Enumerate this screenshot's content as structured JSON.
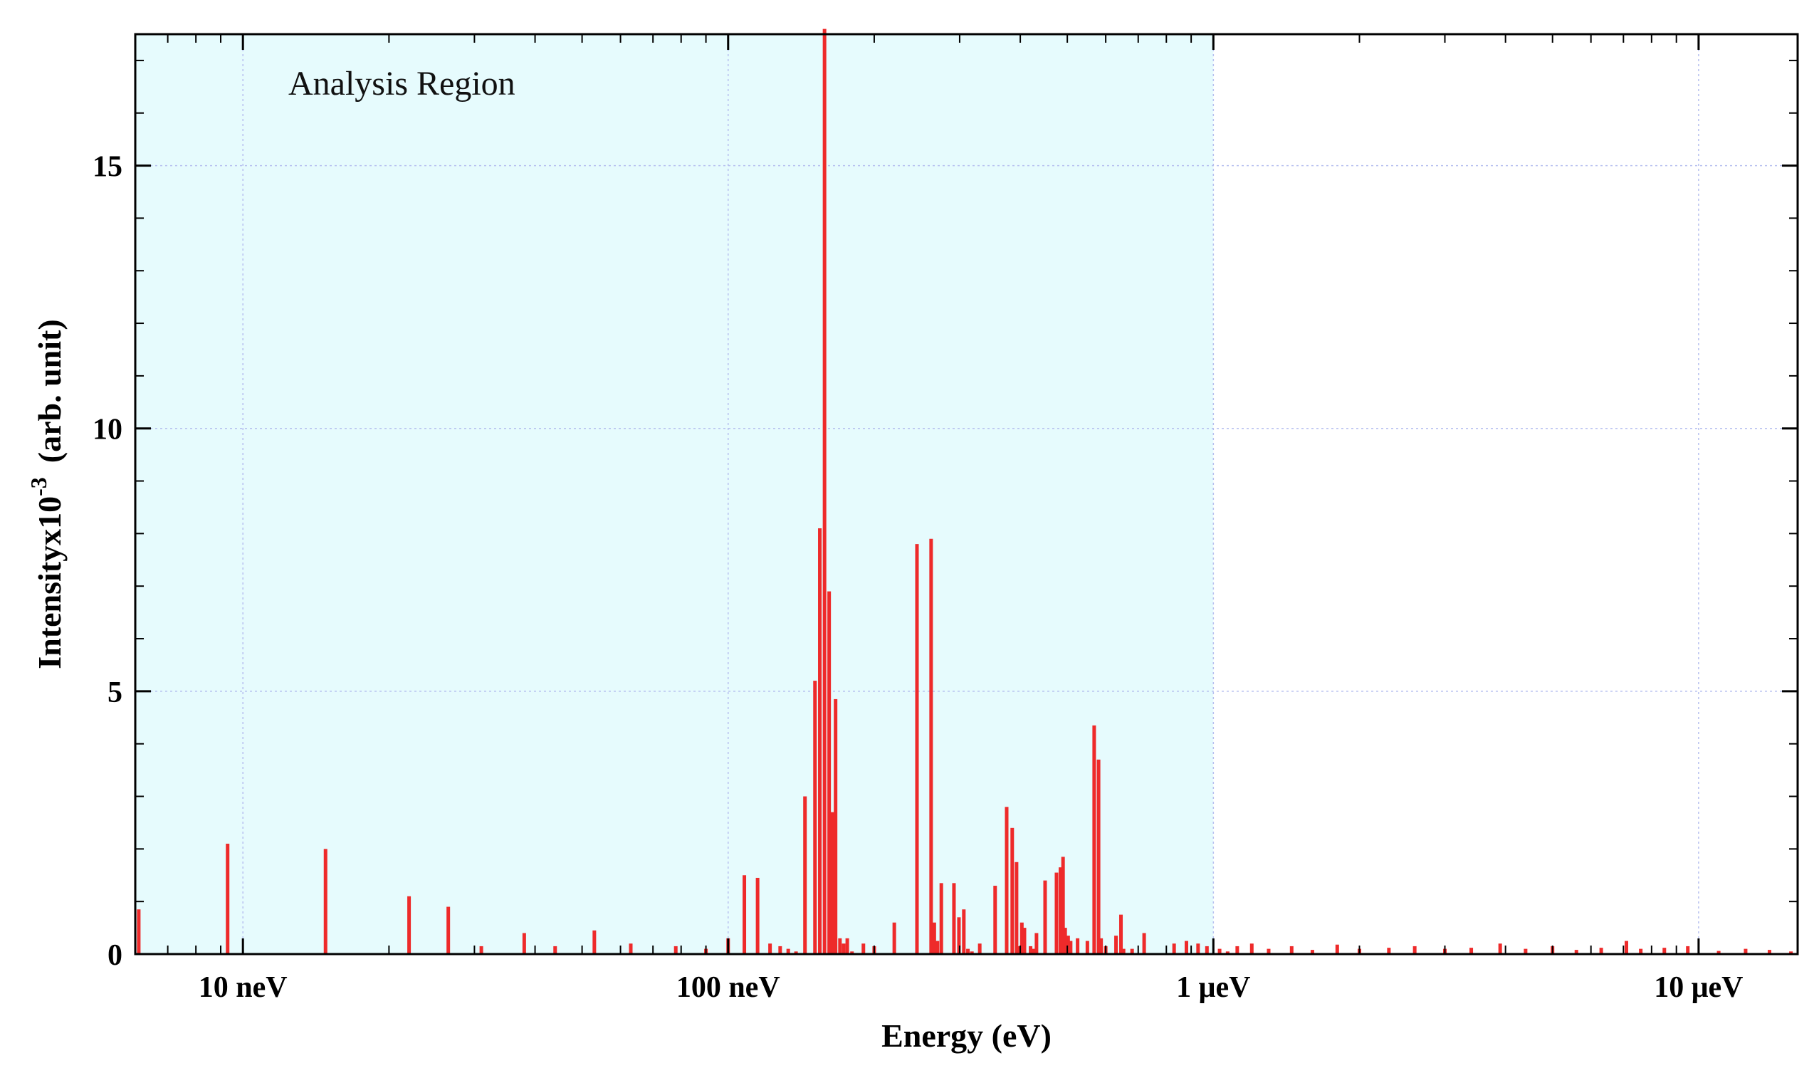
{
  "chart_data": {
    "type": "bar",
    "xlabel": "Energy (eV)",
    "ylabel": "Intensityx10",
    "ylabel_exponent": "-3",
    "ylabel_unit": "(arb. unit)",
    "x_scale": "log",
    "xlim": [
      6e-09,
      1.6e-05
    ],
    "ylim": [
      0,
      17.5
    ],
    "x_ticks": [
      {
        "value": 1e-08,
        "label": "10 neV"
      },
      {
        "value": 1e-07,
        "label": "100 neV"
      },
      {
        "value": 1e-06,
        "label": "1 μeV"
      },
      {
        "value": 1e-05,
        "label": "10 μeV"
      }
    ],
    "y_ticks": [
      {
        "value": 0,
        "label": "0"
      },
      {
        "value": 5,
        "label": "5"
      },
      {
        "value": 10,
        "label": "10"
      },
      {
        "value": 15,
        "label": "15"
      }
    ],
    "grid": true,
    "region": {
      "label": "Analysis Region",
      "x_from": 6e-09,
      "x_to": 1e-06,
      "color": "#e6fbfd"
    },
    "bar_color": "#ee2a2a",
    "x": [
      6.1e-09,
      9.3e-09,
      1.48e-08,
      2.2e-08,
      2.65e-08,
      3.1e-08,
      3.8e-08,
      4.4e-08,
      5.3e-08,
      6.3e-08,
      7.8e-08,
      9e-08,
      1e-07,
      1.08e-07,
      1.15e-07,
      1.22e-07,
      1.28e-07,
      1.33e-07,
      1.38e-07,
      1.44e-07,
      1.51e-07,
      1.545e-07,
      1.58e-07,
      1.615e-07,
      1.64e-07,
      1.665e-07,
      1.7e-07,
      1.73e-07,
      1.76e-07,
      1.8e-07,
      1.9e-07,
      2e-07,
      2.2e-07,
      2.45e-07,
      2.62e-07,
      2.66e-07,
      2.7e-07,
      2.75e-07,
      2.92e-07,
      2.99e-07,
      3.06e-07,
      3.12e-07,
      3.18e-07,
      3.3e-07,
      3.55e-07,
      3.75e-07,
      3.85e-07,
      3.93e-07,
      3.98e-07,
      4.03e-07,
      4.08e-07,
      4.2e-07,
      4.26e-07,
      4.32e-07,
      4.5e-07,
      4.75e-07,
      4.84e-07,
      4.9e-07,
      4.95e-07,
      5.02e-07,
      5.08e-07,
      5.25e-07,
      5.5e-07,
      5.68e-07,
      5.8e-07,
      5.87e-07,
      6e-07,
      6.3e-07,
      6.45e-07,
      6.53e-07,
      6.8e-07,
      7.2e-07,
      8.3e-07,
      8.8e-07,
      9.3e-07,
      9.7e-07,
      1.03e-06,
      1.07e-06,
      1.12e-06,
      1.2e-06,
      1.3e-06,
      1.45e-06,
      1.6e-06,
      1.8e-06,
      2e-06,
      2.3e-06,
      2.6e-06,
      3e-06,
      3.4e-06,
      3.9e-06,
      4.4e-06,
      5e-06,
      5.6e-06,
      6.3e-06,
      7.1e-06,
      7.6e-06,
      8.5e-06,
      9.5e-06,
      1.1e-05,
      1.25e-05,
      1.4e-05,
      1.55e-05
    ],
    "values": [
      0.85,
      2.1,
      2.0,
      1.1,
      0.9,
      0.15,
      0.4,
      0.15,
      0.45,
      0.2,
      0.15,
      0.1,
      0.3,
      1.5,
      1.45,
      0.2,
      0.15,
      0.1,
      0.05,
      3.0,
      5.2,
      8.1,
      17.6,
      6.9,
      2.7,
      4.85,
      0.3,
      0.2,
      0.3,
      0.05,
      0.2,
      0.15,
      0.6,
      7.8,
      7.9,
      0.6,
      0.25,
      1.35,
      1.35,
      0.7,
      0.85,
      0.1,
      0.05,
      0.2,
      1.3,
      2.8,
      2.4,
      1.75,
      0.15,
      0.6,
      0.5,
      0.15,
      0.1,
      0.4,
      1.4,
      1.55,
      1.65,
      1.85,
      0.5,
      0.35,
      0.25,
      0.3,
      0.25,
      4.35,
      3.7,
      0.3,
      0.15,
      0.35,
      0.75,
      0.1,
      0.1,
      0.4,
      0.2,
      0.25,
      0.2,
      0.15,
      0.1,
      0.05,
      0.15,
      0.2,
      0.1,
      0.15,
      0.08,
      0.18,
      0.1,
      0.12,
      0.15,
      0.1,
      0.12,
      0.2,
      0.1,
      0.15,
      0.08,
      0.12,
      0.25,
      0.1,
      0.12,
      0.15,
      0.06,
      0.1,
      0.08,
      0.05
    ]
  }
}
